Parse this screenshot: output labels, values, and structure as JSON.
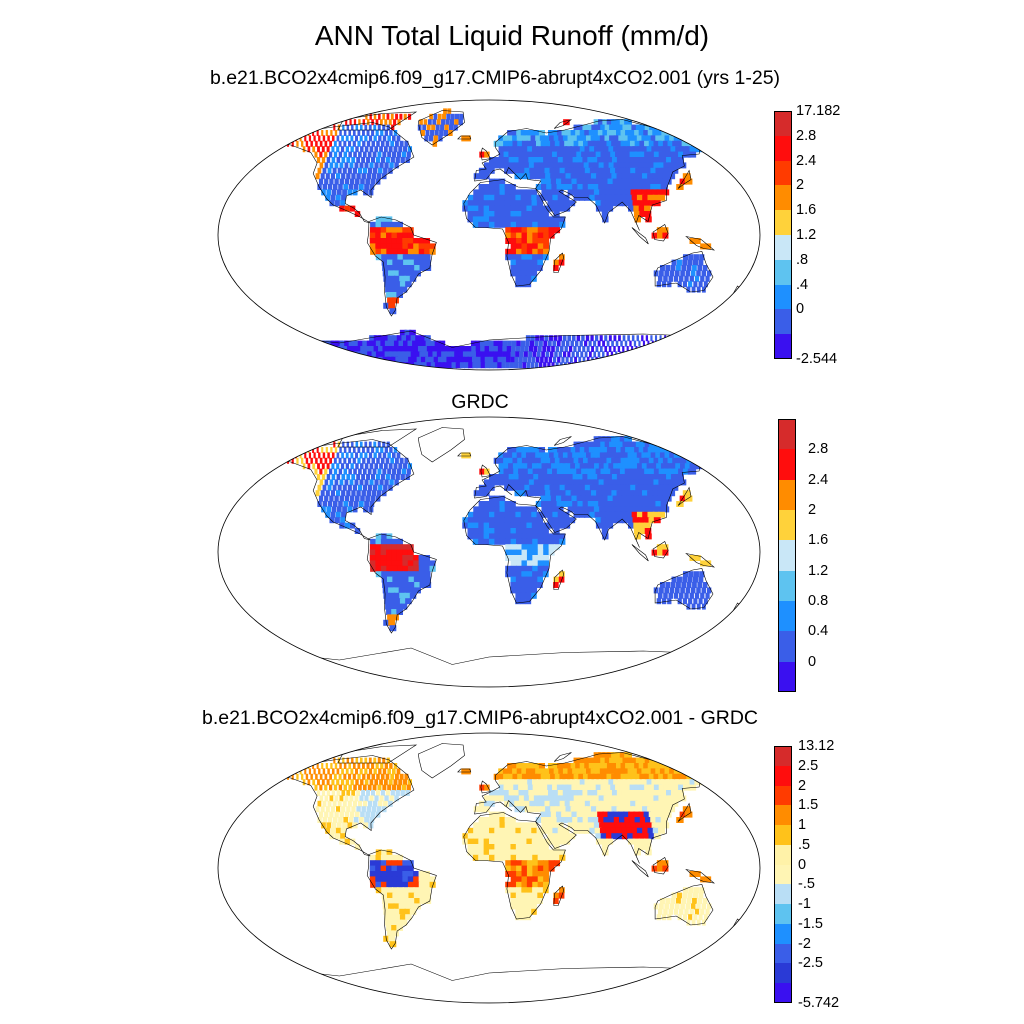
{
  "figure": {
    "title": "ANN Total Liquid Runoff (mm/d)",
    "panels": [
      {
        "title": "b.e21.BCO2x4cmip6.f09_g17.CMIP6-abrupt4xCO2.001 (yrs 1-25)",
        "colorbar": {
          "labels": [
            "17.182",
            "2.8",
            "2.4",
            "2",
            "1.6",
            "1.2",
            ".8",
            ".4",
            "0",
            "-2.544"
          ],
          "colors": [
            "#d62b2b",
            "#ff0d0d",
            "#ff3b00",
            "#ff8c00",
            "#ffd23a",
            "#c9e7f7",
            "#5ec3f0",
            "#1e90ff",
            "#3a5ee8",
            "#3a10f0"
          ]
        }
      },
      {
        "title": "GRDC",
        "colorbar": {
          "labels": [
            "2.8",
            "2.4",
            "2",
            "1.6",
            "1.2",
            "0.8",
            "0.4",
            "0"
          ],
          "colors": [
            "#d62b2b",
            "#ff0d0d",
            "#ff8c00",
            "#ffd23a",
            "#c9e7f7",
            "#5ec3f0",
            "#1e90ff",
            "#3a5ee8",
            "#3a10f0"
          ]
        }
      },
      {
        "title": "b.e21.BCO2x4cmip6.f09_g17.CMIP6-abrupt4xCO2.001 - GRDC",
        "colorbar": {
          "labels": [
            "13.12",
            "2.5",
            "2",
            "1.5",
            "1",
            ".5",
            "0",
            "-.5",
            "-1",
            "-1.5",
            "-2",
            "-2.5",
            "-5.742"
          ],
          "colors": [
            "#d62b2b",
            "#ff0d0d",
            "#ff3b00",
            "#ff8c00",
            "#ffc21a",
            "#fff2a8",
            "#fff5b4",
            "#b9def5",
            "#5ec3f0",
            "#1e90ff",
            "#3a5ee8",
            "#2a3ad6",
            "#3a10f0"
          ]
        }
      }
    ]
  }
}
